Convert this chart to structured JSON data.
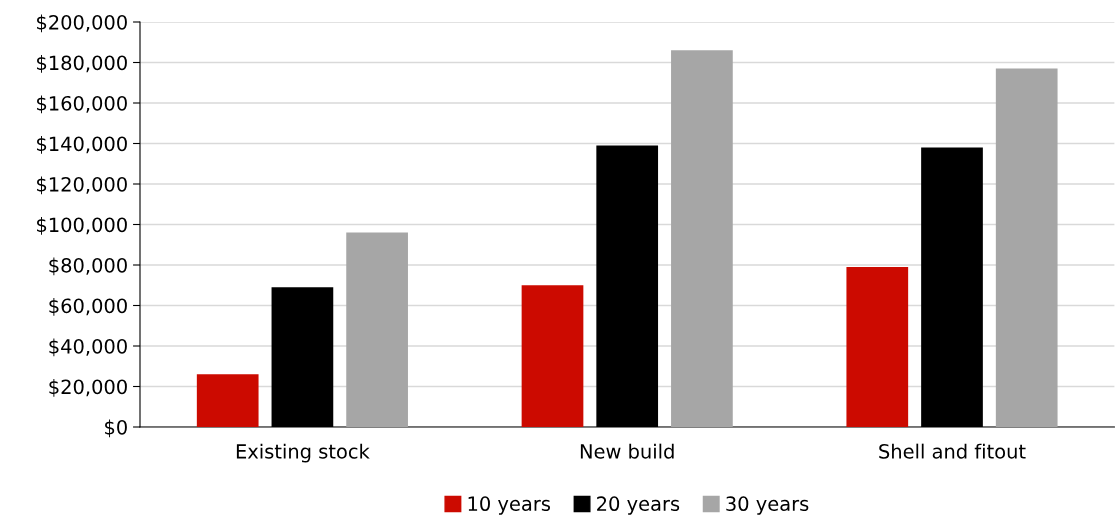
{
  "chart_data": {
    "type": "bar",
    "categories": [
      "Existing stock",
      "New build",
      "Shell and fitout"
    ],
    "series": [
      {
        "name": "10 years",
        "color": "#cc0a00",
        "values": [
          26000,
          70000,
          79000
        ]
      },
      {
        "name": "20 years",
        "color": "#000000",
        "values": [
          69000,
          139000,
          138000
        ]
      },
      {
        "name": "30 years",
        "color": "#a6a6a6",
        "values": [
          96000,
          186000,
          177000
        ]
      }
    ],
    "ylim": [
      0,
      200000
    ],
    "yticks": [
      {
        "value": 0,
        "label": "$0"
      },
      {
        "value": 20000,
        "label": "$20,000"
      },
      {
        "value": 40000,
        "label": "$40,000"
      },
      {
        "value": 60000,
        "label": "$60,000"
      },
      {
        "value": 80000,
        "label": "$80,000"
      },
      {
        "value": 100000,
        "label": "$100,000"
      },
      {
        "value": 120000,
        "label": "$120,000"
      },
      {
        "value": 140000,
        "label": "$140,000"
      },
      {
        "value": 160000,
        "label": "$160,000"
      },
      {
        "value": 180000,
        "label": "$180,000"
      },
      {
        "value": 200000,
        "label": "$200,000"
      }
    ],
    "grid": "y",
    "legend": "bottom"
  }
}
